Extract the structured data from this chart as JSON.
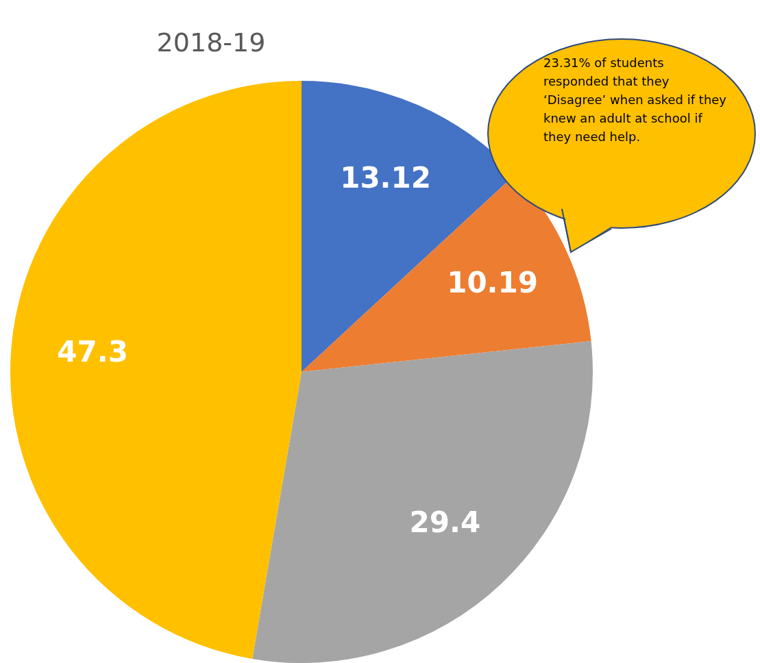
{
  "chart_data": {
    "type": "pie",
    "title": "2018-19",
    "categories": [
      null,
      null,
      null,
      null
    ],
    "values": [
      13.12,
      10.19,
      29.4,
      47.3
    ],
    "colors": [
      "#4472c4",
      "#ed7d31",
      "#a5a5a5",
      "#ffc000"
    ],
    "data_labels": true,
    "legend": false,
    "annotations": [
      "23.31% of students responded that they ‘Disagree’ when asked if they knew an adult at school if they need help."
    ]
  }
}
